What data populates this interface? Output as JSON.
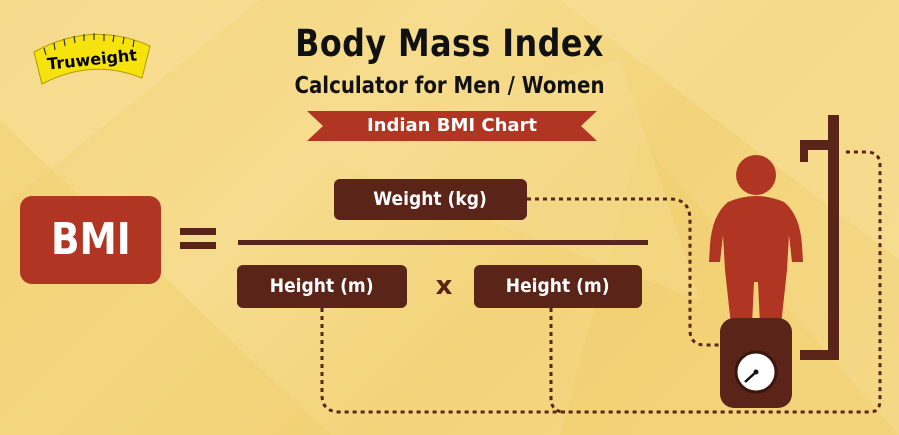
{
  "logo": {
    "text": "Truweight"
  },
  "header": {
    "title": "Body Mass Index",
    "subtitle": "Calculator for Men / Women",
    "ribbon": "Indian BMI Chart"
  },
  "formula": {
    "result": "BMI",
    "numerator": "Weight (kg)",
    "denominator_left": "Height (m)",
    "operator": "x",
    "denominator_right": "Height (m)"
  },
  "colors": {
    "background": "#f4d57c",
    "dark_brown": "#5a2418",
    "red": "#b03623"
  }
}
